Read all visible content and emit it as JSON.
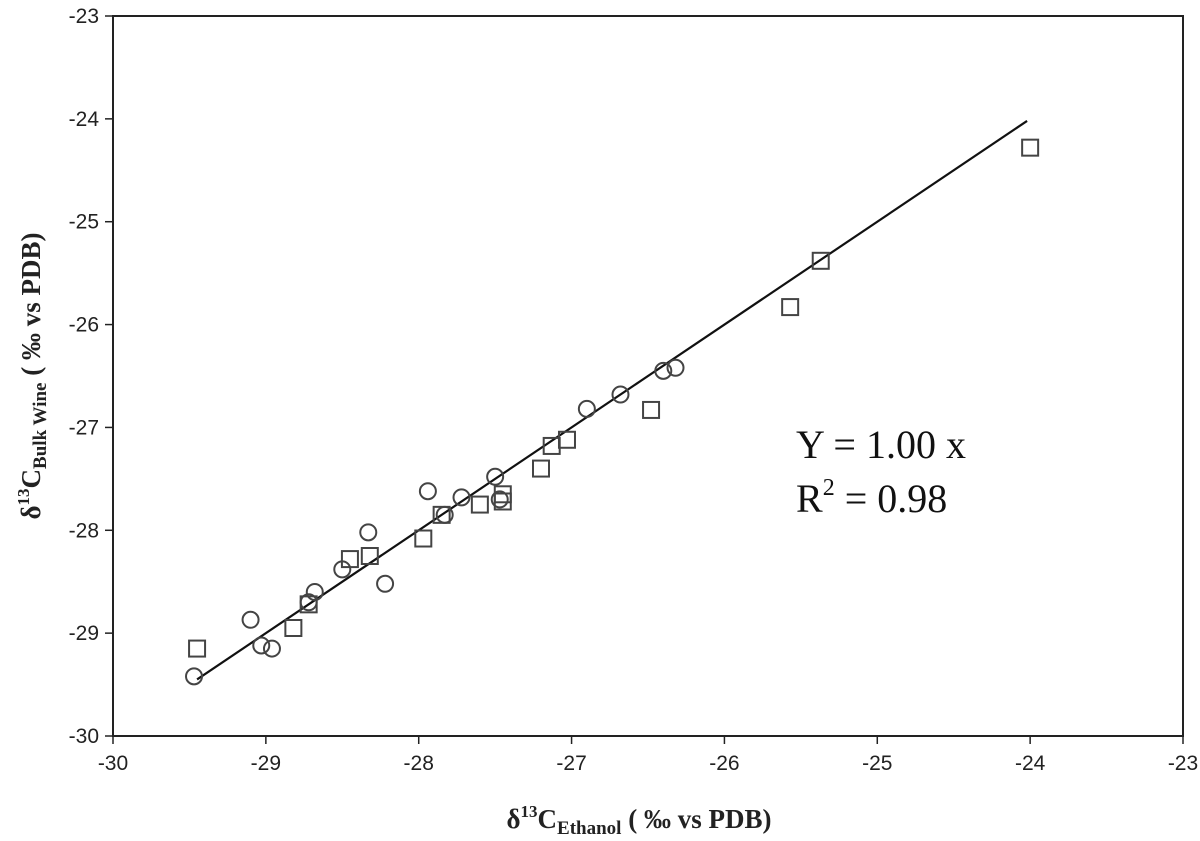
{
  "chart_data": {
    "type": "scatter",
    "title": "",
    "xlabel": {
      "main": "δ",
      "sup": "13",
      "letter": "C",
      "sub": "Ethanol",
      "unit": " ( ‰ vs PDB)"
    },
    "ylabel": {
      "main": "δ",
      "sup": "13",
      "letter": "C",
      "sub": "Bulk Wine",
      "unit": " ( ‰ vs PDB)"
    },
    "xlim": [
      -30,
      -23
    ],
    "ylim": [
      -30,
      -23
    ],
    "x_ticks": [
      "-30",
      "-29",
      "-28",
      "-27",
      "-26",
      "-25",
      "-24",
      "-23"
    ],
    "y_ticks": [
      "-23",
      "-24",
      "-25",
      "-26",
      "-27",
      "-28",
      "-29",
      "-30"
    ],
    "grid": false,
    "series": [
      {
        "marker": "square",
        "x": [
          -29.45,
          -28.82,
          -28.72,
          -28.45,
          -28.32,
          -27.97,
          -27.85,
          -27.6,
          -27.45,
          -27.45,
          -27.2,
          -27.13,
          -27.03,
          -26.48,
          -25.57,
          -25.37,
          -24.0
        ],
        "y": [
          -29.15,
          -28.95,
          -28.72,
          -28.28,
          -28.25,
          -28.08,
          -27.85,
          -27.75,
          -27.65,
          -27.72,
          -27.4,
          -27.18,
          -27.12,
          -26.83,
          -25.83,
          -25.38,
          -24.28
        ]
      },
      {
        "marker": "circle",
        "x": [
          -29.47,
          -29.1,
          -29.03,
          -28.96,
          -28.72,
          -28.68,
          -28.5,
          -28.33,
          -28.22,
          -27.94,
          -27.83,
          -27.72,
          -27.5,
          -27.47,
          -26.9,
          -26.68,
          -26.4,
          -26.32
        ],
        "y": [
          -29.42,
          -28.87,
          -29.12,
          -29.15,
          -28.7,
          -28.6,
          -28.38,
          -28.02,
          -28.52,
          -27.62,
          -27.85,
          -27.68,
          -27.48,
          -27.7,
          -26.82,
          -26.68,
          -26.45,
          -26.42
        ]
      }
    ],
    "fit_line": {
      "slope": 1.0,
      "x_range": [
        -29.45,
        -24.02
      ]
    },
    "annotation": {
      "line1": "Y = 1.00 x",
      "line2_prefix": "R",
      "line2_sup": "2",
      "line2_suffix": " = 0.98"
    }
  }
}
